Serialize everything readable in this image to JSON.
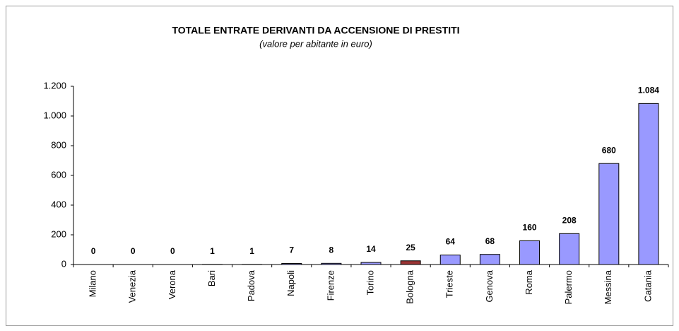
{
  "chart_data": {
    "type": "bar",
    "title": "TOTALE ENTRATE DERIVANTI DA ACCENSIONE DI PRESTITI",
    "subtitle": "(valore per abitante in euro)",
    "categories": [
      "Milano",
      "Venezia",
      "Verona",
      "Bari",
      "Padova",
      "Napoli",
      "Firenze",
      "Torino",
      "Bologna",
      "Trieste",
      "Genova",
      "Roma",
      "Palermo",
      "Messina",
      "Catania"
    ],
    "values": [
      0,
      0,
      0,
      1,
      1,
      7,
      8,
      14,
      25,
      64,
      68,
      160,
      208,
      680,
      1084
    ],
    "value_labels": [
      "0",
      "0",
      "0",
      "1",
      "1",
      "7",
      "8",
      "14",
      "25",
      "64",
      "68",
      "160",
      "208",
      "680",
      "1.084"
    ],
    "colors": [
      "#9999ff",
      "#9999ff",
      "#9999ff",
      "#9999ff",
      "#9999ff",
      "#9999ff",
      "#9999ff",
      "#9999ff",
      "#993333",
      "#9999ff",
      "#9999ff",
      "#9999ff",
      "#9999ff",
      "#9999ff",
      "#9999ff"
    ],
    "ylim": [
      0,
      1200
    ],
    "yticks": [
      0,
      200,
      400,
      600,
      800,
      {
        "value": 1000,
        "label": "1.000"
      },
      {
        "value": 1200,
        "label": "1.200"
      }
    ],
    "grid": false
  }
}
